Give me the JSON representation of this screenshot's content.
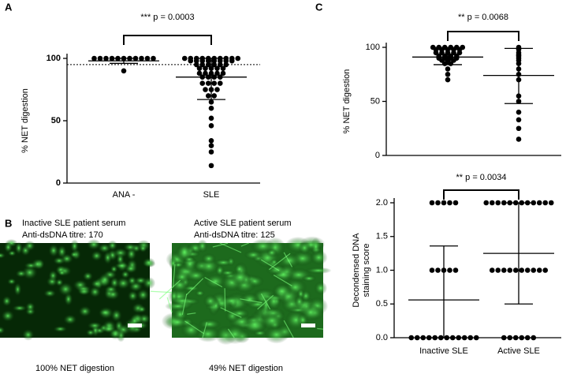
{
  "chart_data": [
    {
      "type": "dot",
      "panel_label": "A",
      "annotation": "*** p = 0.0003",
      "ylabel": "% NET digestion",
      "categories": [
        "ANA -",
        "SLE"
      ],
      "ylim": [
        0,
        100
      ],
      "yticks": [
        0,
        50,
        100
      ],
      "reference_line": 95,
      "color": "#000000",
      "groups": [
        {
          "values": [
            100,
            100,
            100,
            100,
            100,
            100,
            100,
            100,
            100,
            100,
            100,
            90
          ],
          "center": 98,
          "low": 96,
          "high": 100
        },
        {
          "values": [
            100,
            100,
            100,
            100,
            100,
            100,
            100,
            100,
            100,
            100,
            98,
            98,
            98,
            98,
            98,
            98,
            98,
            98,
            95,
            95,
            95,
            95,
            95,
            95,
            92,
            92,
            92,
            92,
            92,
            88,
            88,
            88,
            88,
            88,
            85,
            85,
            85,
            85,
            80,
            80,
            80,
            80,
            75,
            75,
            75,
            70,
            70,
            65,
            60,
            52,
            46,
            34,
            30,
            25,
            14
          ],
          "center": 85,
          "low": 67,
          "high": 100
        }
      ]
    },
    {
      "type": "dot",
      "panel_label": "C",
      "annotation": "** p = 0.0068",
      "ylabel": "% NET digestion",
      "categories": [
        null,
        null
      ],
      "ylim": [
        0,
        100
      ],
      "yticks": [
        0,
        50,
        100
      ],
      "color": "#000000",
      "groups": [
        {
          "values": [
            100,
            100,
            100,
            100,
            100,
            100,
            98,
            98,
            98,
            98,
            98,
            95,
            95,
            95,
            95,
            95,
            92,
            92,
            92,
            92,
            90,
            90,
            90,
            90,
            88,
            88,
            88,
            85,
            85,
            80,
            75,
            70
          ],
          "center": 91,
          "low": 84,
          "high": 98
        },
        {
          "values": [
            100,
            98,
            95,
            93,
            92,
            90,
            88,
            85,
            80,
            75,
            70,
            55,
            50,
            40,
            33,
            25,
            15
          ],
          "center": 74,
          "low": 48,
          "high": 99
        }
      ]
    },
    {
      "type": "dot",
      "annotation": "** p = 0.0034",
      "ylabel": [
        "Decondensed DNA",
        "staining score"
      ],
      "categories": [
        "Inactive SLE",
        "Active SLE"
      ],
      "ylim": [
        0,
        2
      ],
      "yticks": [
        {
          "value": 0,
          "label": "0.0"
        },
        {
          "value": 0.5,
          "label": "0.5"
        },
        {
          "value": 1,
          "label": "1.0"
        },
        {
          "value": 1.5,
          "label": "1.5"
        },
        {
          "value": 2,
          "label": "2.0"
        }
      ],
      "color": "#000000",
      "groups": [
        {
          "values": [
            2,
            2,
            2,
            2,
            2,
            1,
            1,
            1,
            1,
            1,
            0,
            0,
            0,
            0,
            0,
            0,
            0,
            0,
            0,
            0,
            0,
            0
          ],
          "center": 0.56,
          "low": 0,
          "high": 1.36
        },
        {
          "values": [
            2,
            2,
            2,
            2,
            2,
            2,
            2,
            2,
            2,
            2,
            2,
            2,
            1,
            1,
            1,
            1,
            1,
            1,
            1,
            1,
            1,
            1,
            0,
            0,
            0,
            0,
            0,
            0
          ],
          "center": 1.25,
          "low": 0.5,
          "high": 2
        }
      ]
    }
  ],
  "panel_b": {
    "label": "B",
    "images": [
      {
        "title": "Inactive SLE patient serum",
        "subtitle": "Anti-dsDNA titre: 170",
        "caption": "100% NET digestion"
      },
      {
        "title": "Active SLE patient serum",
        "subtitle": "Anti-dsDNA titre: 125",
        "caption": "49% NET digestion"
      }
    ]
  }
}
